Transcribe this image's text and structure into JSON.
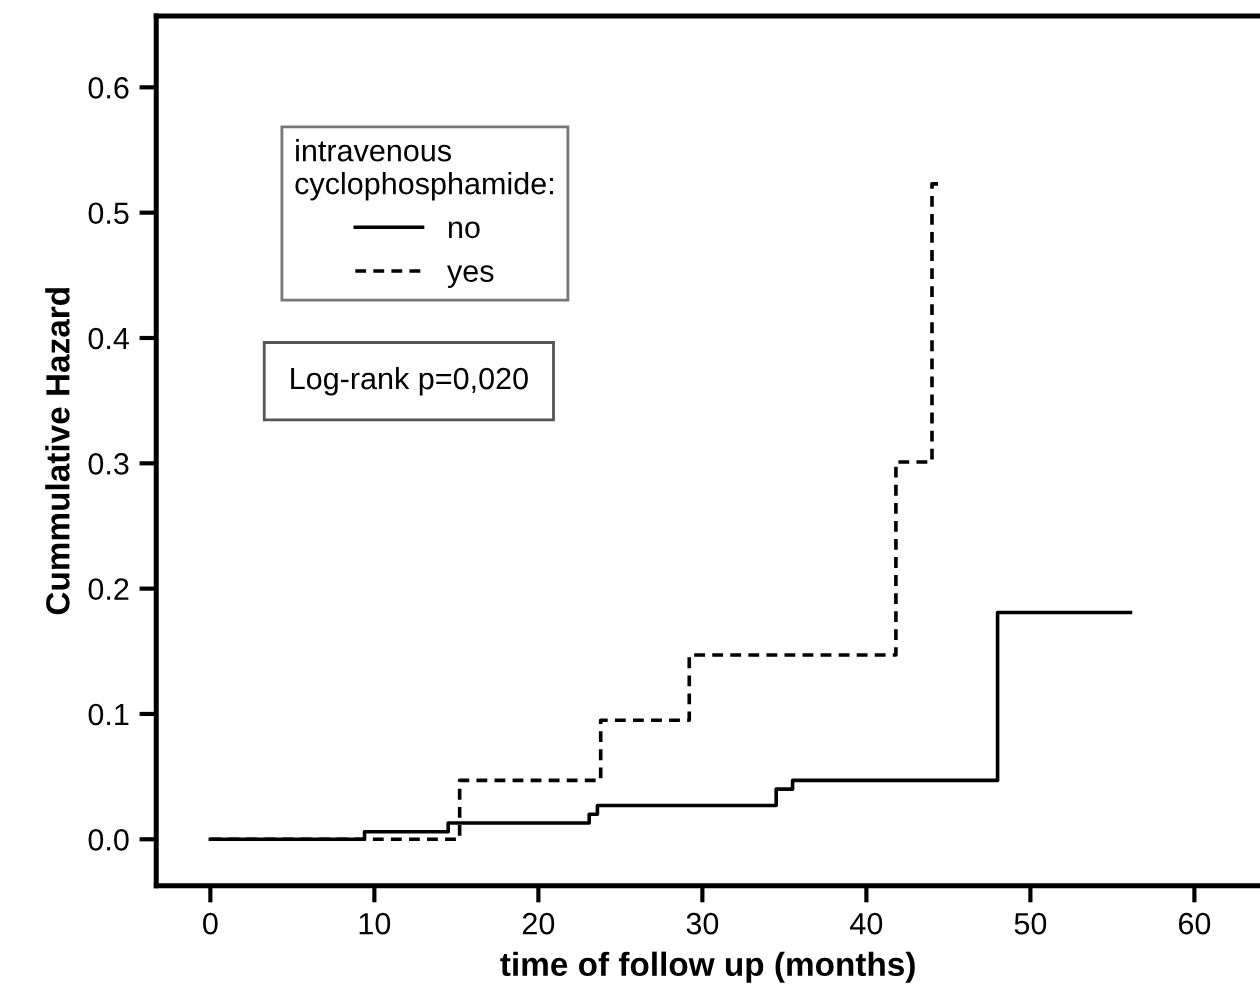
{
  "chart_data": {
    "type": "step",
    "xlabel": "time of follow up (months)",
    "ylabel": "Cummulative Hazard",
    "legend_title": "intravenous\ncyclophosphamide:",
    "legend": "top left",
    "series": [
      {
        "name": "no",
        "color": "#000000",
        "line_style": "solid",
        "x": [
          0,
          9.4,
          14.5,
          23.1,
          23.6,
          34.5,
          35.5,
          48.0,
          56.1
        ],
        "values": [
          0,
          0.006,
          0.013,
          0.02,
          0.027,
          0.04,
          0.047,
          0.181,
          0.181
        ]
      },
      {
        "name": "yes",
        "color": "#000000",
        "line_style": "dashed",
        "x": [
          0,
          15.2,
          23.8,
          29.2,
          41.8,
          44.0,
          44.5
        ],
        "values": [
          0,
          0.047,
          0.095,
          0.147,
          0.301,
          0.523,
          0.523
        ]
      }
    ],
    "annotations": [
      "Log-rank p=0,020"
    ],
    "xlim": [
      -3.3,
      64
    ],
    "ylim": [
      -0.037,
      0.657
    ],
    "xticks": [
      0,
      10,
      20,
      30,
      40,
      50,
      60
    ],
    "yticks": [
      {
        "value": 0,
        "label": "0.0"
      },
      {
        "value": 0.1,
        "label": "0.1"
      },
      {
        "value": 0.2,
        "label": "0.2"
      },
      {
        "value": 0.3,
        "label": "0.3"
      },
      {
        "value": 0.4,
        "label": "0.4"
      },
      {
        "value": 0.5,
        "label": "0.5"
      },
      {
        "value": 0.6,
        "label": "0.6"
      }
    ],
    "grid": false
  }
}
